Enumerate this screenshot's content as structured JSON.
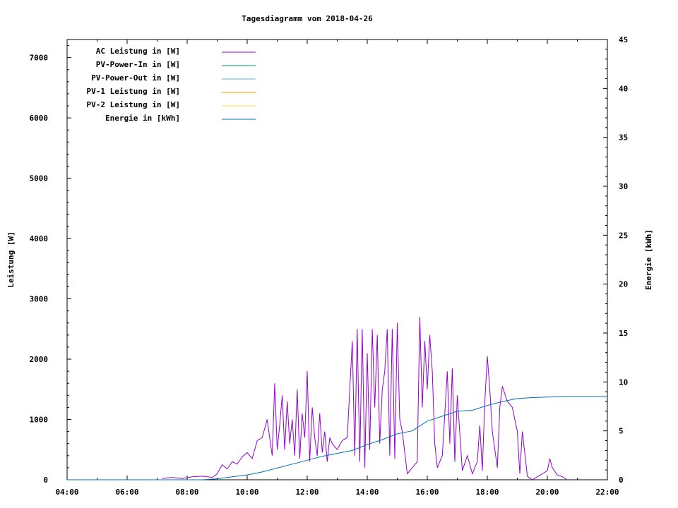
{
  "chart_data": {
    "type": "line",
    "title": "Tagesdiagramm vom 2018-04-26",
    "xlabel": "",
    "ylabel": "Leistung [W]",
    "y2label": "Energie [kWh]",
    "xlim": [
      "04:00",
      "22:00"
    ],
    "ylim": [
      0,
      7300
    ],
    "y2lim": [
      0,
      45
    ],
    "x_ticks": [
      "04:00",
      "06:00",
      "08:00",
      "10:00",
      "12:00",
      "14:00",
      "16:00",
      "18:00",
      "20:00",
      "22:00"
    ],
    "y_ticks": [
      0,
      1000,
      2000,
      3000,
      4000,
      5000,
      6000,
      7000
    ],
    "y2_ticks": [
      0,
      5,
      10,
      15,
      20,
      25,
      30,
      35,
      40,
      45
    ],
    "grid": false,
    "legend": "top-left",
    "series": [
      {
        "name": "AC Leistung in [W]",
        "color": "#9400d3",
        "axis": "y",
        "x": [
          "07:10",
          "07:30",
          "07:50",
          "08:10",
          "08:30",
          "08:50",
          "09:00",
          "09:10",
          "09:20",
          "09:30",
          "09:40",
          "09:50",
          "10:00",
          "10:10",
          "10:20",
          "10:30",
          "10:40",
          "10:50",
          "10:55",
          "11:00",
          "11:05",
          "11:10",
          "11:15",
          "11:20",
          "11:25",
          "11:30",
          "11:35",
          "11:40",
          "11:45",
          "11:50",
          "11:55",
          "12:00",
          "12:05",
          "12:10",
          "12:15",
          "12:20",
          "12:25",
          "12:30",
          "12:35",
          "12:40",
          "12:45",
          "12:50",
          "13:00",
          "13:10",
          "13:20",
          "13:30",
          "13:35",
          "13:40",
          "13:45",
          "13:50",
          "13:55",
          "14:00",
          "14:05",
          "14:10",
          "14:15",
          "14:20",
          "14:25",
          "14:30",
          "14:35",
          "14:40",
          "14:45",
          "14:50",
          "14:55",
          "15:00",
          "15:05",
          "15:10",
          "15:20",
          "15:30",
          "15:40",
          "15:45",
          "15:50",
          "15:55",
          "16:00",
          "16:05",
          "16:10",
          "16:15",
          "16:20",
          "16:30",
          "16:40",
          "16:45",
          "16:50",
          "16:55",
          "17:00",
          "17:10",
          "17:20",
          "17:30",
          "17:40",
          "17:45",
          "17:50",
          "17:55",
          "18:00",
          "18:05",
          "18:10",
          "18:20",
          "18:25",
          "18:30",
          "18:40",
          "18:50",
          "19:00",
          "19:05",
          "19:10",
          "19:20",
          "19:30",
          "19:40",
          "19:50",
          "20:00",
          "20:05",
          "20:10",
          "20:20",
          "20:30",
          "20:40"
        ],
        "y": [
          20,
          40,
          20,
          50,
          60,
          40,
          100,
          250,
          180,
          300,
          260,
          380,
          450,
          350,
          650,
          700,
          1000,
          400,
          1600,
          500,
          900,
          1400,
          500,
          1300,
          600,
          1000,
          400,
          1500,
          350,
          1100,
          700,
          1800,
          300,
          1200,
          700,
          400,
          1100,
          450,
          800,
          300,
          700,
          600,
          500,
          650,
          700,
          2300,
          400,
          2500,
          300,
          2500,
          200,
          2100,
          500,
          2500,
          1200,
          2400,
          600,
          1500,
          1800,
          2500,
          400,
          2500,
          350,
          2600,
          1000,
          800,
          100,
          200,
          300,
          2700,
          1200,
          2300,
          1500,
          2400,
          1800,
          600,
          200,
          400,
          1800,
          600,
          1850,
          300,
          1400,
          150,
          400,
          100,
          300,
          900,
          150,
          1300,
          2050,
          1500,
          800,
          200,
          1200,
          1550,
          1300,
          1200,
          800,
          100,
          800,
          60,
          0,
          50,
          100,
          150,
          350,
          200,
          80,
          50,
          0
        ]
      },
      {
        "name": "PV-Power-In in [W]",
        "color": "#009e73",
        "axis": "y",
        "x": [],
        "y": []
      },
      {
        "name": "PV-Power-Out in [W]",
        "color": "#56b4e9",
        "axis": "y",
        "x": [],
        "y": []
      },
      {
        "name": "PV-1 Leistung in [W]",
        "color": "#e69f00",
        "axis": "y",
        "x": [],
        "y": []
      },
      {
        "name": "PV-2 Leistung in [W]",
        "color": "#f0e442",
        "axis": "y",
        "x": [],
        "y": []
      },
      {
        "name": "Energie in [kWh]",
        "color": "#0072b2",
        "axis": "y2",
        "x": [
          "04:00",
          "08:00",
          "08:30",
          "09:00",
          "09:30",
          "10:00",
          "10:30",
          "11:00",
          "11:30",
          "12:00",
          "12:30",
          "13:00",
          "13:30",
          "14:00",
          "14:30",
          "15:00",
          "15:30",
          "16:00",
          "16:30",
          "17:00",
          "17:30",
          "18:00",
          "18:30",
          "19:00",
          "19:30",
          "20:00",
          "20:30",
          "21:00",
          "22:00"
        ],
        "y": [
          0,
          0,
          0,
          0.1,
          0.3,
          0.5,
          0.8,
          1.2,
          1.6,
          2.0,
          2.4,
          2.7,
          3.0,
          3.6,
          4.1,
          4.7,
          5.0,
          6.0,
          6.5,
          7.0,
          7.1,
          7.6,
          8.0,
          8.3,
          8.4,
          8.45,
          8.5,
          8.5,
          8.5
        ]
      }
    ]
  }
}
